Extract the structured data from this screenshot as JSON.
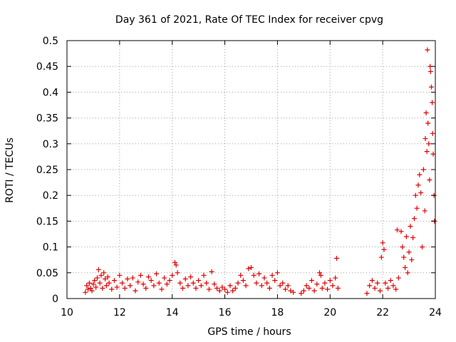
{
  "chart_data": {
    "type": "scatter",
    "title": "Day 361 of 2021, Rate Of TEC Index for receiver cpvg",
    "xlabel": "GPS time / hours",
    "ylabel": "ROTI / TECUs",
    "xlim": [
      10,
      24
    ],
    "ylim": [
      0,
      0.5
    ],
    "x_ticks": [
      10,
      12,
      14,
      16,
      18,
      20,
      22,
      24
    ],
    "x_tick_labels": [
      "10",
      "12",
      "14",
      "16",
      "18",
      "20",
      "22",
      "24"
    ],
    "y_ticks": [
      0,
      0.05,
      0.1,
      0.15,
      0.2,
      0.25,
      0.3,
      0.35,
      0.4,
      0.45,
      0.5
    ],
    "y_tick_labels": [
      "0",
      "0.05",
      "0.1",
      "0.15",
      "0.2",
      "0.25",
      "0.3",
      "0.35",
      "0.4",
      "0.45",
      "0.5"
    ],
    "grid": true,
    "marker": "+",
    "color": "#e00000",
    "series": [
      {
        "points": [
          [
            10.7,
            0.012
          ],
          [
            10.75,
            0.025
          ],
          [
            10.8,
            0.018
          ],
          [
            10.85,
            0.03
          ],
          [
            10.9,
            0.02
          ],
          [
            10.95,
            0.015
          ],
          [
            11.0,
            0.028
          ],
          [
            11.05,
            0.035
          ],
          [
            11.1,
            0.022
          ],
          [
            11.15,
            0.04
          ],
          [
            11.2,
            0.056
          ],
          [
            11.25,
            0.03
          ],
          [
            11.3,
            0.045
          ],
          [
            11.35,
            0.02
          ],
          [
            11.4,
            0.05
          ],
          [
            11.45,
            0.038
          ],
          [
            11.5,
            0.025
          ],
          [
            11.55,
            0.042
          ],
          [
            11.6,
            0.03
          ],
          [
            11.7,
            0.018
          ],
          [
            11.8,
            0.035
          ],
          [
            11.9,
            0.022
          ],
          [
            12.0,
            0.045
          ],
          [
            12.1,
            0.03
          ],
          [
            12.2,
            0.02
          ],
          [
            12.3,
            0.038
          ],
          [
            12.4,
            0.025
          ],
          [
            12.5,
            0.04
          ],
          [
            12.6,
            0.015
          ],
          [
            12.7,
            0.032
          ],
          [
            12.8,
            0.045
          ],
          [
            12.9,
            0.028
          ],
          [
            13.0,
            0.02
          ],
          [
            13.1,
            0.042
          ],
          [
            13.2,
            0.035
          ],
          [
            13.3,
            0.025
          ],
          [
            13.4,
            0.048
          ],
          [
            13.5,
            0.03
          ],
          [
            13.6,
            0.018
          ],
          [
            13.7,
            0.04
          ],
          [
            13.8,
            0.028
          ],
          [
            13.9,
            0.035
          ],
          [
            14.0,
            0.045
          ],
          [
            14.1,
            0.07
          ],
          [
            14.15,
            0.065
          ],
          [
            14.2,
            0.05
          ],
          [
            14.3,
            0.03
          ],
          [
            14.4,
            0.02
          ],
          [
            14.5,
            0.038
          ],
          [
            14.6,
            0.025
          ],
          [
            14.7,
            0.042
          ],
          [
            14.8,
            0.03
          ],
          [
            14.9,
            0.02
          ],
          [
            15.0,
            0.035
          ],
          [
            15.1,
            0.025
          ],
          [
            15.2,
            0.045
          ],
          [
            15.3,
            0.03
          ],
          [
            15.4,
            0.018
          ],
          [
            15.5,
            0.052
          ],
          [
            15.6,
            0.028
          ],
          [
            15.7,
            0.02
          ],
          [
            15.8,
            0.015
          ],
          [
            15.9,
            0.022
          ],
          [
            16.0,
            0.018
          ],
          [
            16.1,
            0.012
          ],
          [
            16.2,
            0.025
          ],
          [
            16.3,
            0.015
          ],
          [
            16.4,
            0.02
          ],
          [
            16.5,
            0.03
          ],
          [
            16.6,
            0.045
          ],
          [
            16.7,
            0.035
          ],
          [
            16.8,
            0.025
          ],
          [
            16.9,
            0.058
          ],
          [
            17.0,
            0.06
          ],
          [
            17.1,
            0.045
          ],
          [
            17.2,
            0.03
          ],
          [
            17.3,
            0.048
          ],
          [
            17.4,
            0.025
          ],
          [
            17.5,
            0.04
          ],
          [
            17.6,
            0.03
          ],
          [
            17.7,
            0.02
          ],
          [
            17.8,
            0.045
          ],
          [
            17.9,
            0.035
          ],
          [
            18.0,
            0.05
          ],
          [
            18.1,
            0.025
          ],
          [
            18.2,
            0.03
          ],
          [
            18.3,
            0.018
          ],
          [
            18.4,
            0.025
          ],
          [
            18.5,
            0.015
          ],
          [
            18.6,
            0.012
          ],
          [
            18.9,
            0.01
          ],
          [
            19.0,
            0.015
          ],
          [
            19.1,
            0.025
          ],
          [
            19.2,
            0.02
          ],
          [
            19.3,
            0.035
          ],
          [
            19.4,
            0.015
          ],
          [
            19.5,
            0.028
          ],
          [
            19.6,
            0.05
          ],
          [
            19.65,
            0.045
          ],
          [
            19.7,
            0.02
          ],
          [
            19.8,
            0.03
          ],
          [
            19.9,
            0.018
          ],
          [
            20.0,
            0.035
          ],
          [
            20.1,
            0.025
          ],
          [
            20.2,
            0.04
          ],
          [
            20.25,
            0.078
          ],
          [
            20.3,
            0.02
          ],
          [
            21.4,
            0.01
          ],
          [
            21.5,
            0.025
          ],
          [
            21.6,
            0.035
          ],
          [
            21.7,
            0.02
          ],
          [
            21.8,
            0.03
          ],
          [
            21.9,
            0.015
          ],
          [
            21.95,
            0.08
          ],
          [
            22.0,
            0.108
          ],
          [
            22.05,
            0.095
          ],
          [
            22.1,
            0.03
          ],
          [
            22.2,
            0.02
          ],
          [
            22.3,
            0.035
          ],
          [
            22.4,
            0.025
          ],
          [
            22.5,
            0.018
          ],
          [
            22.55,
            0.133
          ],
          [
            22.6,
            0.04
          ],
          [
            22.7,
            0.13
          ],
          [
            22.75,
            0.1
          ],
          [
            22.8,
            0.08
          ],
          [
            22.85,
            0.06
          ],
          [
            22.9,
            0.12
          ],
          [
            22.95,
            0.05
          ],
          [
            23.0,
            0.09
          ],
          [
            23.05,
            0.14
          ],
          [
            23.1,
            0.075
          ],
          [
            23.15,
            0.118
          ],
          [
            23.2,
            0.155
          ],
          [
            23.25,
            0.2
          ],
          [
            23.3,
            0.175
          ],
          [
            23.35,
            0.22
          ],
          [
            23.4,
            0.24
          ],
          [
            23.45,
            0.205
          ],
          [
            23.5,
            0.1
          ],
          [
            23.55,
            0.25
          ],
          [
            23.6,
            0.17
          ],
          [
            23.62,
            0.31
          ],
          [
            23.65,
            0.36
          ],
          [
            23.68,
            0.285
          ],
          [
            23.7,
            0.482
          ],
          [
            23.72,
            0.34
          ],
          [
            23.75,
            0.3
          ],
          [
            23.78,
            0.23
          ],
          [
            23.8,
            0.45
          ],
          [
            23.82,
            0.44
          ],
          [
            23.85,
            0.41
          ],
          [
            23.88,
            0.38
          ],
          [
            23.9,
            0.32
          ],
          [
            23.92,
            0.28
          ],
          [
            23.95,
            0.2
          ],
          [
            23.97,
            0.15
          ]
        ]
      }
    ]
  }
}
